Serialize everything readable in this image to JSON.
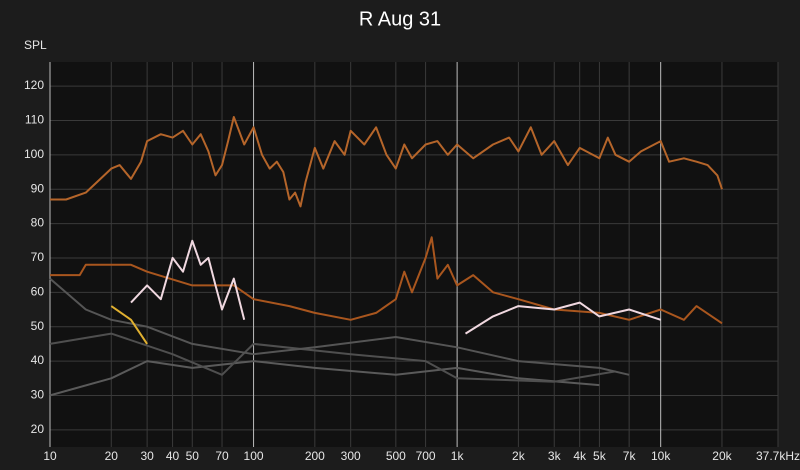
{
  "chart_data": {
    "type": "line",
    "title": "R Aug 31",
    "y_label": "SPL",
    "x_scale": "log",
    "grid": true,
    "xlim": [
      10,
      37700
    ],
    "ylim": [
      15,
      127
    ],
    "xticks": [
      10,
      20,
      30,
      40,
      50,
      70,
      100,
      200,
      300,
      500,
      700,
      {
        "value": 1000,
        "label": "1k"
      },
      {
        "value": 2000,
        "label": "2k"
      },
      {
        "value": 3000,
        "label": "3k"
      },
      {
        "value": 4000,
        "label": "4k"
      },
      {
        "value": 5000,
        "label": "5k"
      },
      {
        "value": 7000,
        "label": "7k"
      },
      {
        "value": 10000,
        "label": "10k"
      },
      {
        "value": 20000,
        "label": "20k"
      },
      {
        "value": 37700,
        "label": "37.7kHz"
      }
    ],
    "yticks": [
      20,
      30,
      40,
      50,
      60,
      70,
      80,
      90,
      100,
      110,
      120
    ],
    "series": [
      {
        "color": "#5a5a5a",
        "x": [
          10,
          20,
          30,
          50,
          100,
          200,
          500,
          1000,
          2000,
          5000
        ],
        "values": [
          30,
          35,
          40,
          38,
          40,
          38,
          36,
          38,
          35,
          33
        ]
      },
      {
        "color": "#4f4f4f",
        "x": [
          10,
          20,
          40,
          70,
          100,
          300,
          700,
          1000,
          3000,
          6000
        ],
        "values": [
          45,
          48,
          42,
          36,
          45,
          42,
          40,
          35,
          34,
          37
        ]
      },
      {
        "color": "#555555",
        "x": [
          10,
          15,
          20,
          30,
          50,
          100,
          200,
          500,
          1000,
          2000,
          5000,
          7000
        ],
        "values": [
          64,
          55,
          52,
          50,
          45,
          42,
          44,
          47,
          44,
          40,
          38,
          36
        ]
      },
      {
        "color": "#e0b030",
        "x": [
          20,
          25,
          30
        ],
        "values": [
          56,
          52,
          45
        ]
      },
      {
        "color": "#a9561e",
        "x": [
          10,
          14,
          15,
          20,
          25,
          30,
          50,
          80,
          100,
          150,
          200,
          300,
          400,
          500,
          550,
          600,
          700,
          750,
          800,
          900,
          1000,
          1200,
          1500,
          2000,
          3000,
          5000,
          7000,
          10000,
          13000,
          15000,
          20000
        ],
        "values": [
          65,
          65,
          68,
          68,
          68,
          66,
          62,
          62,
          58,
          56,
          54,
          52,
          54,
          58,
          66,
          60,
          70,
          76,
          64,
          68,
          62,
          65,
          60,
          58,
          55,
          54,
          52,
          55,
          52,
          56,
          51
        ]
      },
      {
        "color": "#f0d8e0",
        "x": [
          25,
          30,
          35,
          40,
          45,
          50,
          55,
          60,
          65,
          70,
          80,
          90
        ],
        "values": [
          57,
          62,
          58,
          70,
          66,
          75,
          68,
          70,
          62,
          55,
          64,
          52
        ]
      },
      {
        "color": "#f0d8e0",
        "x": [
          1100,
          1500,
          2000,
          3000,
          4000,
          5000,
          7000,
          10000
        ],
        "values": [
          48,
          53,
          56,
          55,
          57,
          53,
          55,
          52
        ]
      },
      {
        "color": "#b5652a",
        "x": [
          10,
          12,
          15,
          20,
          22,
          25,
          28,
          30,
          35,
          40,
          45,
          50,
          55,
          60,
          65,
          70,
          75,
          80,
          90,
          100,
          110,
          120,
          130,
          140,
          150,
          160,
          170,
          180,
          200,
          220,
          250,
          280,
          300,
          350,
          400,
          450,
          500,
          550,
          600,
          700,
          800,
          900,
          1000,
          1200,
          1500,
          1800,
          2000,
          2300,
          2600,
          3000,
          3500,
          4000,
          5000,
          5500,
          6000,
          7000,
          8000,
          10000,
          11000,
          13000,
          15000,
          17000,
          19000,
          20000
        ],
        "values": [
          87,
          87,
          89,
          96,
          97,
          93,
          98,
          104,
          106,
          105,
          107,
          103,
          106,
          101,
          94,
          97,
          104,
          111,
          103,
          108,
          100,
          96,
          98,
          95,
          87,
          89,
          85,
          92,
          102,
          96,
          104,
          100,
          107,
          103,
          108,
          100,
          96,
          103,
          99,
          103,
          104,
          100,
          103,
          99,
          103,
          105,
          101,
          108,
          100,
          104,
          97,
          102,
          99,
          105,
          100,
          98,
          101,
          104,
          98,
          99,
          98,
          97,
          94,
          90
        ]
      }
    ]
  }
}
